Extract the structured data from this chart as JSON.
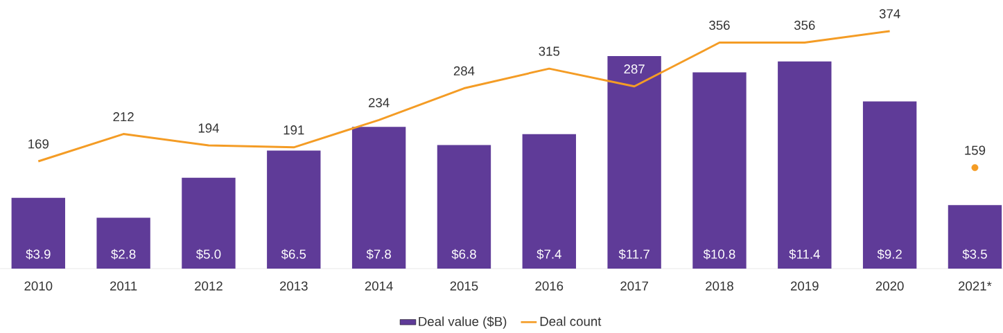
{
  "chart_data": {
    "type": "bar",
    "categories": [
      "2010",
      "2011",
      "2012",
      "2013",
      "2014",
      "2015",
      "2016",
      "2017",
      "2018",
      "2019",
      "2020",
      "2021*"
    ],
    "series": [
      {
        "name": "Deal value ($B)",
        "color": "#5f3b98",
        "values": [
          3.9,
          2.8,
          5.0,
          6.5,
          7.8,
          6.8,
          7.4,
          11.7,
          10.8,
          11.4,
          9.2,
          3.5
        ],
        "value_labels": [
          "$3.9",
          "$2.8",
          "$5.0",
          "$6.5",
          "$7.8",
          "$6.8",
          "$7.4",
          "$11.7",
          "$10.8",
          "$11.4",
          "$9.2",
          "$3.5"
        ]
      },
      {
        "name": "Deal count",
        "type": "line",
        "axis": "y2",
        "color": "#f49c25",
        "values": [
          169,
          212,
          194,
          191,
          234,
          284,
          315,
          287,
          356,
          356,
          374,
          null
        ],
        "value_labels": [
          "169",
          "212",
          "194",
          "191",
          "234",
          "284",
          "315",
          "287",
          "356",
          "356",
          "374",
          null
        ]
      },
      {
        "type": "scatter",
        "axis": "y2",
        "color": "#f49c25",
        "marker": "circle",
        "values": [
          null,
          null,
          null,
          null,
          null,
          null,
          null,
          null,
          null,
          null,
          null,
          159
        ],
        "value_labels": [
          null,
          null,
          null,
          null,
          null,
          null,
          null,
          null,
          null,
          null,
          null,
          "159"
        ]
      }
    ],
    "legend": "bottom"
  }
}
